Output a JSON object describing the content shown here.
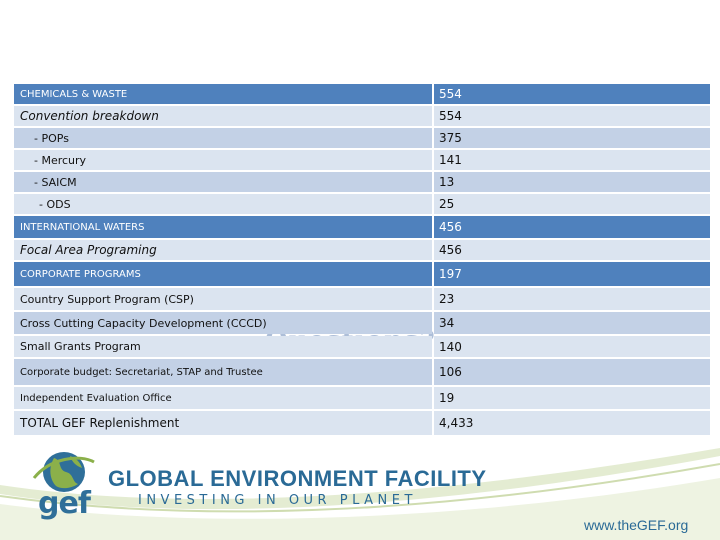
{
  "table": {
    "rows": [
      {
        "label": "CHEMICALS & WASTE",
        "value": "554"
      },
      {
        "label": "Convention breakdown",
        "value": "554"
      },
      {
        "label": "- POPs",
        "value": "375"
      },
      {
        "label": "- Mercury",
        "value": "141"
      },
      {
        "label": "- SAICM",
        "value": "13"
      },
      {
        "label": "- ODS",
        "value": "25"
      },
      {
        "label": "INTERNATIONAL WATERS",
        "value": "456"
      },
      {
        "label": "Focal Area Programing",
        "value": "456"
      },
      {
        "label": "CORPORATE PROGRAMS",
        "value": "197"
      },
      {
        "label": "Country Support Program (CSP)",
        "value": "23"
      },
      {
        "label": "Cross Cutting Capacity Development (CCCD)",
        "value": "34"
      },
      {
        "label": "Small Grants Program",
        "value": "140"
      },
      {
        "label": "Corporate budget: Secretariat, STAP and Trustee",
        "value": "106"
      },
      {
        "label": "Independent Evaluation Office",
        "value": "19"
      },
      {
        "label": "TOTAL GEF Replenishment",
        "value": "4,433"
      }
    ]
  },
  "background_text": "Questions?",
  "logo": {
    "short": "gef",
    "title": "GLOBAL ENVIRONMENT FACILITY",
    "tagline": "INVESTING IN OUR PLANET"
  },
  "website": "www.theGEF.org",
  "colors": {
    "header_fill": "#4f81bd",
    "row_light": "#dbe4f0",
    "row_mid": "#c3d1e6",
    "brand_blue": "#2a6a96",
    "brand_green": "#8bb04a"
  }
}
